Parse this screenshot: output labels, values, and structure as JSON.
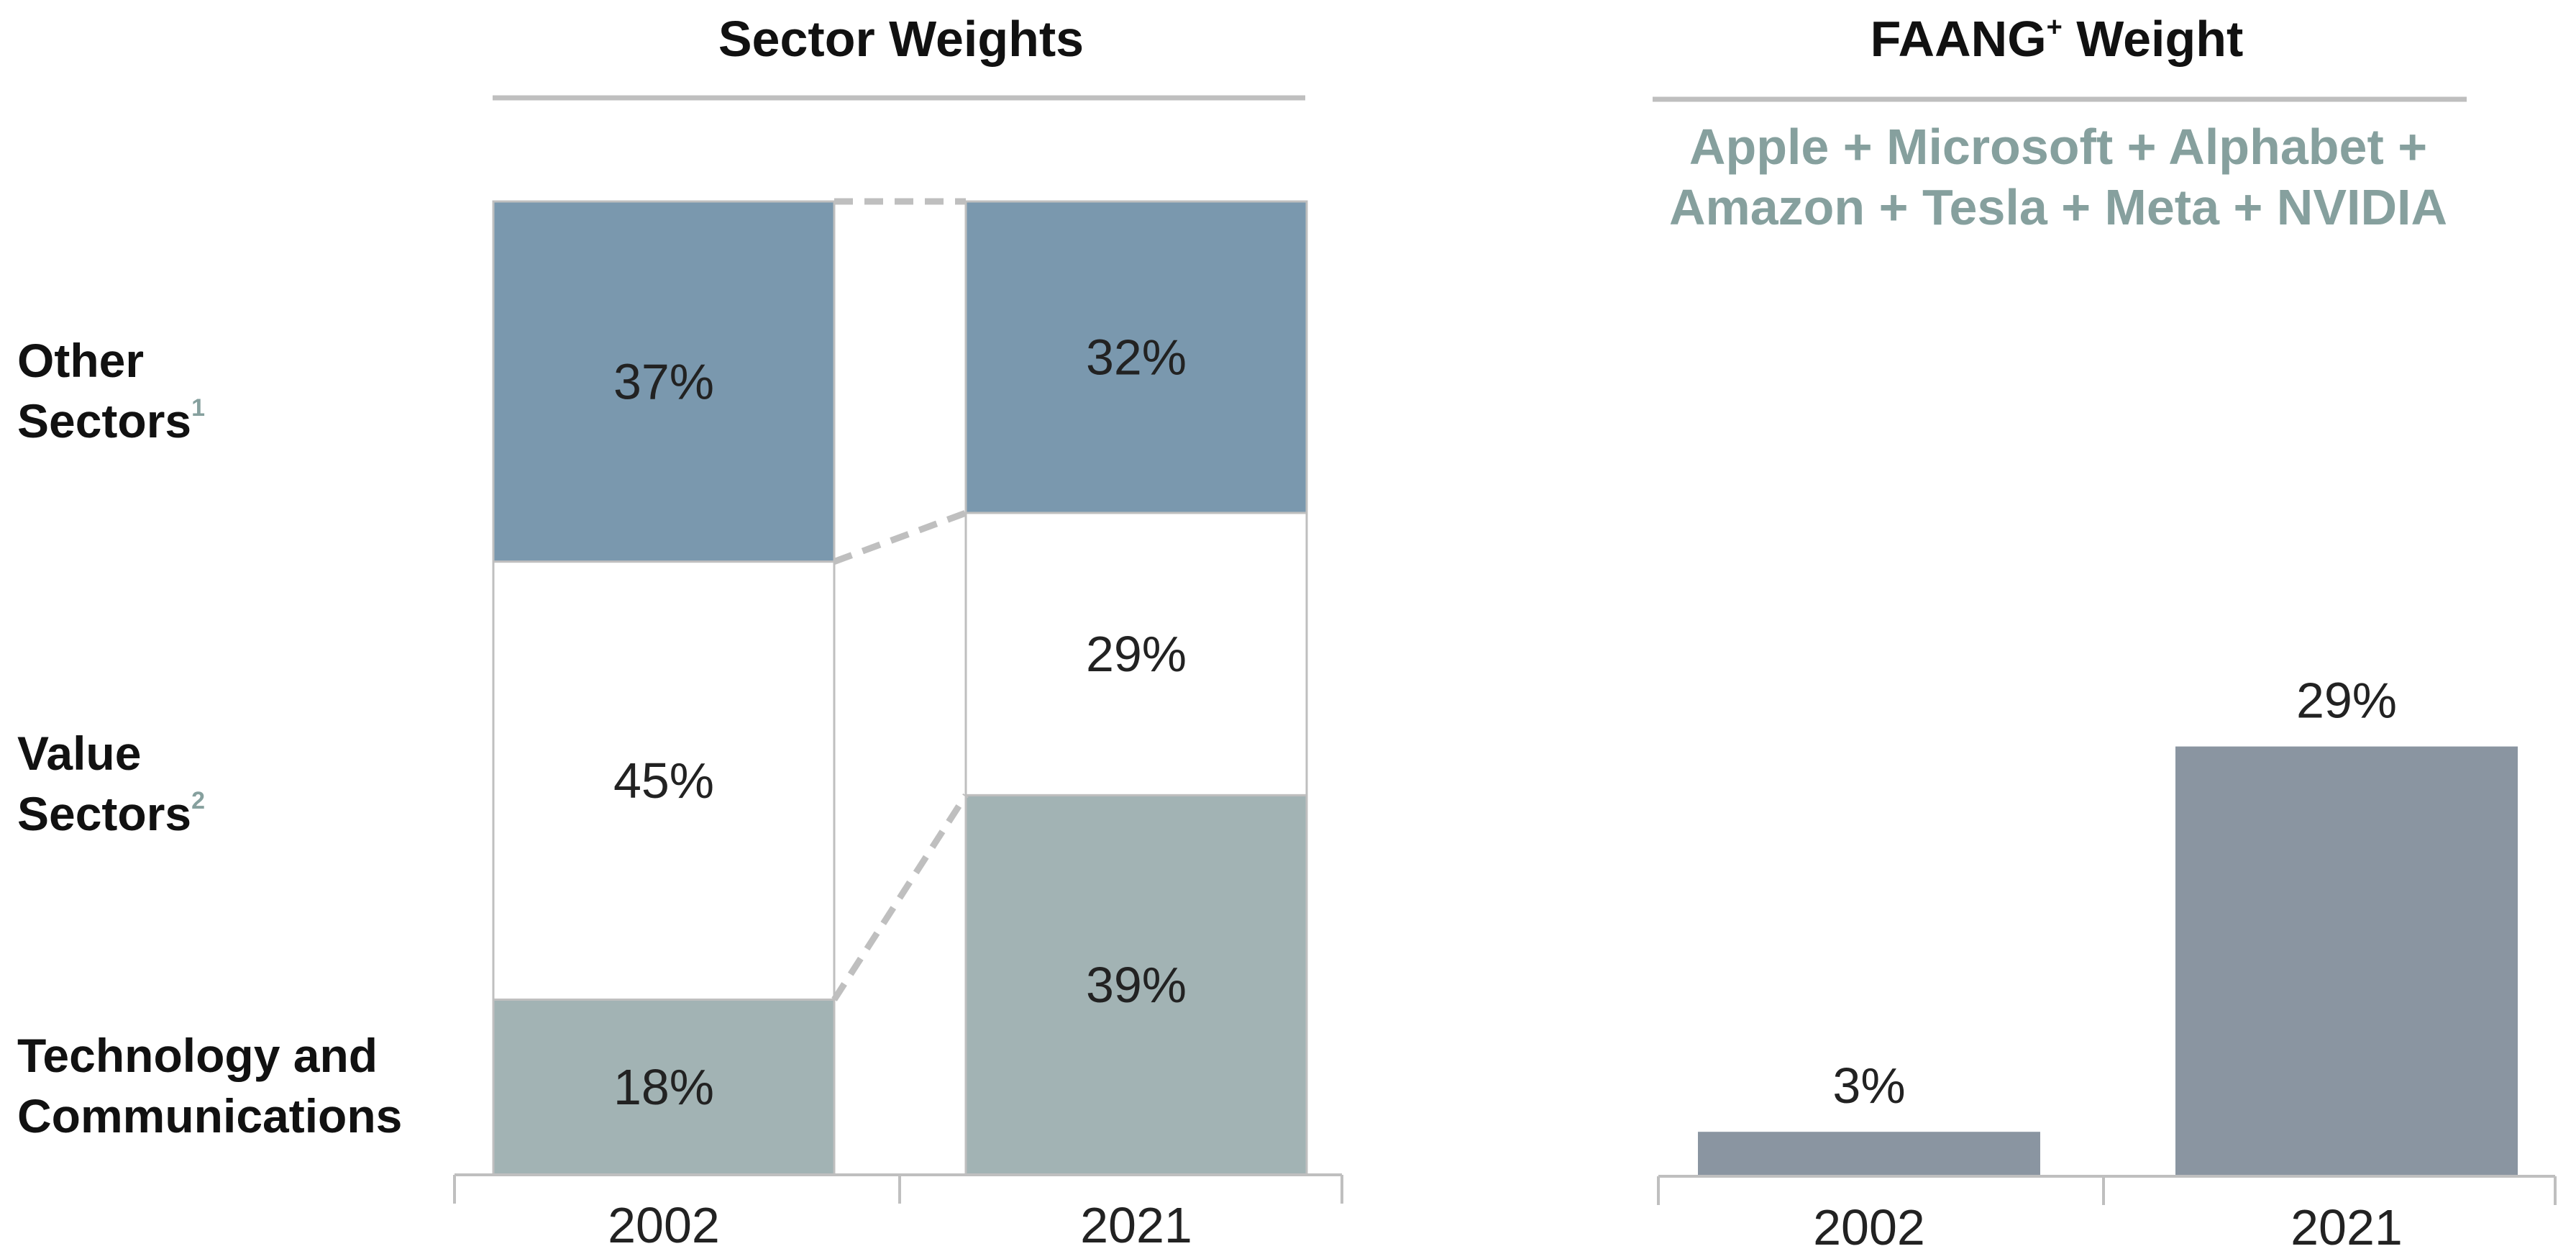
{
  "colors": {
    "other": "#7a98ae",
    "value": "#ffffff",
    "tech": "#a2b3b4",
    "faang": "#8a95a1",
    "rule": "#bfbfbf",
    "subtitle": "#86a09e"
  },
  "chart_data": [
    {
      "type": "bar",
      "stacked": true,
      "title": "Sector Weights",
      "categories": [
        "2002",
        "2021"
      ],
      "series": [
        {
          "name_lines": [
            "Technology and",
            "Communications"
          ],
          "footnote": "",
          "values": [
            18,
            39
          ],
          "labels": [
            "18%",
            "39%"
          ]
        },
        {
          "name_lines": [
            "Value",
            "Sectors"
          ],
          "footnote": "2",
          "values": [
            45,
            29
          ],
          "labels": [
            "45%",
            "29%"
          ]
        },
        {
          "name_lines": [
            "Other",
            "Sectors"
          ],
          "footnote": "1",
          "values": [
            37,
            32
          ],
          "labels": [
            "37%",
            "32%"
          ]
        }
      ],
      "ylim": [
        0,
        100
      ]
    },
    {
      "type": "bar",
      "title": "FAANG",
      "title_sup": "+",
      "title_tail": " Weight",
      "subtitle_lines": [
        "Apple + Microsoft + Alphabet +",
        "Amazon + Tesla + Meta + NVIDIA"
      ],
      "categories": [
        "2002",
        "2021"
      ],
      "values": [
        3,
        29
      ],
      "labels": [
        "3%",
        "29%"
      ]
    }
  ]
}
